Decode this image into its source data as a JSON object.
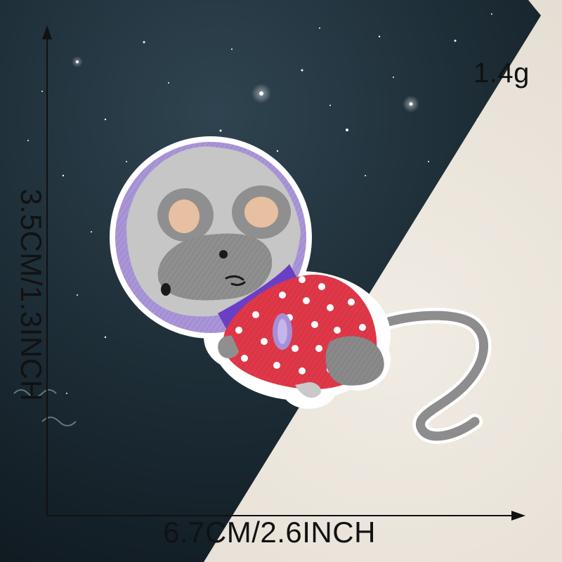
{
  "photo": {
    "subject": "embroidered-patch-space-mouse",
    "colors": {
      "background_fabric": "#ece6dd",
      "space_card": "#1c2a33",
      "helmet_purple": "#a58fd6",
      "mouse_gray": "#8a8a8a",
      "suit_red": "#e03848",
      "collar_violet": "#6b3fc4"
    }
  },
  "dimensions": {
    "weight": "1.4g",
    "width": "6.7CM/2.6INCH",
    "height": "3.5CM/1.3INCH"
  }
}
